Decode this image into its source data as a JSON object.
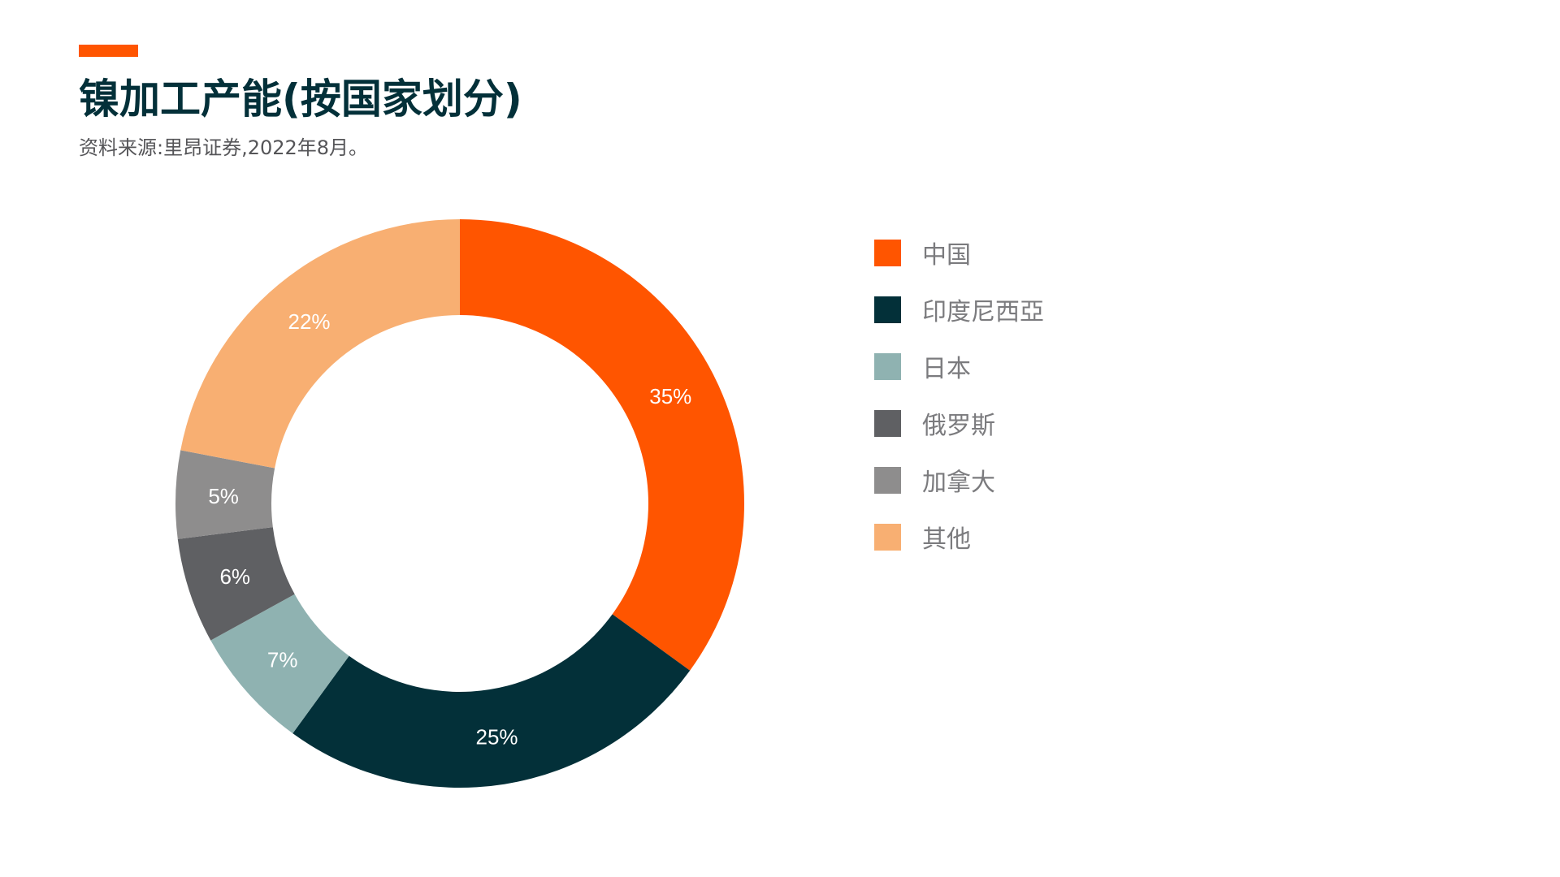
{
  "header": {
    "title": "镍加工产能(按国家划分)",
    "subtitle": "资料来源:里昂证券,2022年8月。"
  },
  "colors": {
    "accent": "#ff5500",
    "title": "#033039"
  },
  "chart_data": {
    "type": "pie",
    "donut": true,
    "title": "镍加工产能(按国家划分)",
    "legend_position": "right",
    "series": [
      {
        "name": "中国",
        "value": 35,
        "label": "35%",
        "color": "#ff5500"
      },
      {
        "name": "印度尼西亞",
        "value": 25,
        "label": "25%",
        "color": "#033039"
      },
      {
        "name": "日本",
        "value": 7,
        "label": "7%",
        "color": "#8fb2b1"
      },
      {
        "name": "俄罗斯",
        "value": 6,
        "label": "6%",
        "color": "#5f6063"
      },
      {
        "name": "加拿大",
        "value": 5,
        "label": "5%",
        "color": "#8e8d8d"
      },
      {
        "name": "其他",
        "value": 22,
        "label": "22%",
        "color": "#f8af72"
      }
    ]
  }
}
